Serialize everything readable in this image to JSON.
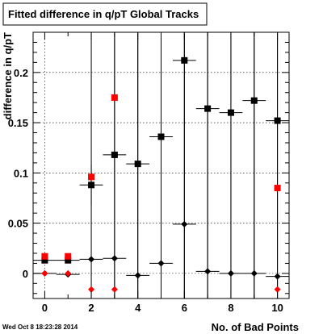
{
  "chart_data": {
    "type": "scatter",
    "title": "Fitted difference in q/pT  Global Tracks",
    "xlabel": "No. of Bad Points",
    "ylabel": "difference in q/pT",
    "xlim": [
      -0.5,
      10.5
    ],
    "ylim": [
      -0.025,
      0.24
    ],
    "x_ticks": [
      "0",
      "2",
      "4",
      "6",
      "8",
      "10"
    ],
    "y_ticks": [
      "0",
      "0.05",
      "0.1",
      "0.15",
      "0.2"
    ],
    "grid": true,
    "timestamp": "Wed Oct  8 18:23:28 2014",
    "series": [
      {
        "marker": "square",
        "color": "#000000",
        "x": [
          0,
          1,
          2,
          3,
          4,
          5,
          6,
          7,
          8,
          9,
          10
        ],
        "y": [
          0.013,
          0.013,
          0.088,
          0.118,
          0.109,
          0.136,
          0.212,
          0.164,
          0.16,
          0.172,
          0.152
        ],
        "y_err": [
          0.003,
          0.003,
          0.02,
          0.25,
          0.19,
          0.25,
          0.25,
          0.25,
          0.25,
          0.25,
          0.25
        ]
      },
      {
        "marker": "square",
        "color": "#ff0000",
        "x": [
          0,
          1,
          2,
          3,
          10
        ],
        "y": [
          0.017,
          0.017,
          0.096,
          0.175,
          0.085
        ]
      },
      {
        "marker": "diamond",
        "color": "#000000",
        "x": [
          0,
          1,
          2,
          3,
          4,
          5,
          6,
          7,
          8,
          9,
          10
        ],
        "y": [
          0.0,
          -0.001,
          0.014,
          0.015,
          -0.002,
          0.01,
          0.049,
          0.002,
          0.0,
          0.0,
          -0.003
        ],
        "y_err": [
          0.002,
          0.002,
          0.25,
          0.25,
          0.25,
          0.25,
          0.25,
          0.25,
          0.25,
          0.25,
          0.25
        ]
      },
      {
        "marker": "diamond",
        "color": "#ff0000",
        "x": [
          0,
          1,
          2,
          3,
          10
        ],
        "y": [
          0.0,
          0.0,
          -0.016,
          -0.016,
          -0.016
        ]
      }
    ]
  }
}
